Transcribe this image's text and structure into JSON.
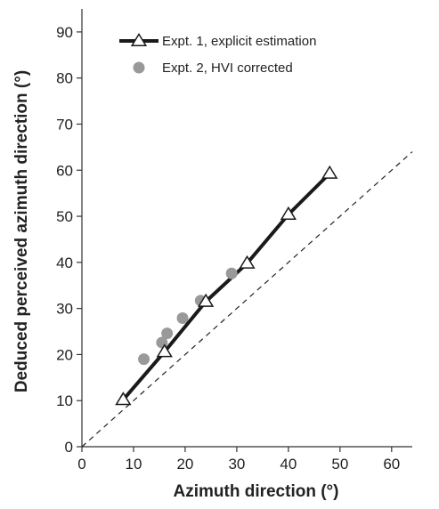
{
  "chart_data": {
    "type": "scatter",
    "title": "",
    "xlabel": "Azimuth direction (°)",
    "ylabel": "Deduced perceived azimuth direction (°)",
    "xlim": [
      0,
      64
    ],
    "ylim": [
      0,
      95
    ],
    "xticks": [
      0,
      10,
      20,
      30,
      40,
      50,
      60
    ],
    "yticks": [
      0,
      10,
      20,
      30,
      40,
      50,
      60,
      70,
      80,
      90
    ],
    "grid": false,
    "legend_position": "top-left",
    "series": [
      {
        "name": "Expt. 1, explicit estimation",
        "kind": "line-with-open-triangles",
        "color": "#1a1a1a",
        "x": [
          8,
          16,
          24,
          32,
          40,
          48
        ],
        "y": [
          10.2,
          20.6,
          31.5,
          39.8,
          50.4,
          59.3
        ]
      },
      {
        "name": "Expt. 2, HVI corrected",
        "kind": "filled-circles",
        "color": "#999999",
        "x": [
          12,
          15.5,
          16.5,
          19.5,
          23,
          29
        ],
        "y": [
          19,
          22.6,
          24.6,
          27.9,
          31.7,
          37.6
        ]
      }
    ],
    "reference_line": {
      "kind": "dashed",
      "x": [
        0,
        64
      ],
      "y": [
        0,
        64
      ]
    }
  }
}
